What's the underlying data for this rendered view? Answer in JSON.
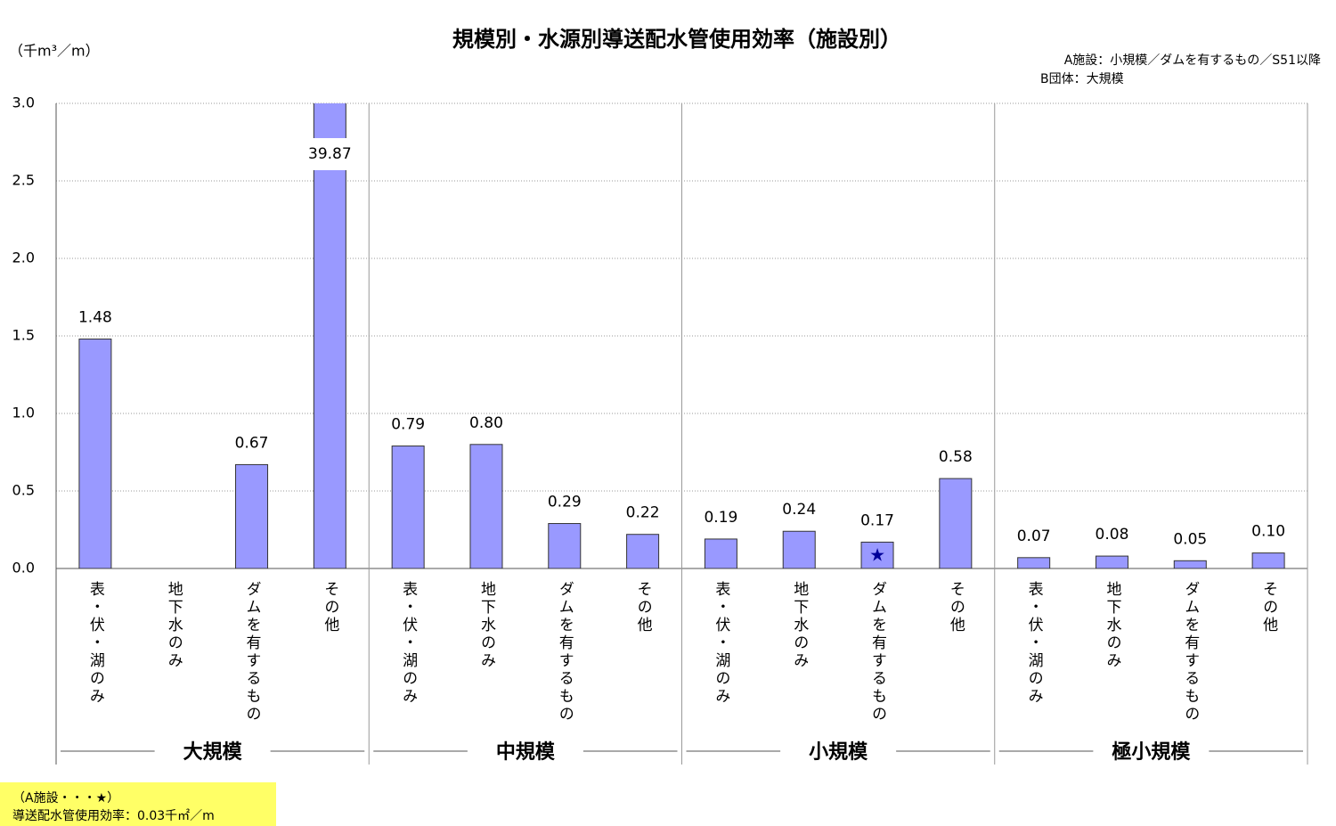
{
  "chart_data": {
    "type": "bar",
    "title": "規模別・水源別導送配水管使用効率（施設別）",
    "y_axis_label": "（千m³／m）",
    "annotations": [
      "A施設：小規模／ダムを有するもの／S51以降",
      "B団体：大規模"
    ],
    "note": [
      "（A施設・・・★）",
      "導送配水管使用効率：0.03千㎡／m"
    ],
    "groups": [
      "大規模",
      "中規模",
      "小規模",
      "極小規模"
    ],
    "categories": [
      "表・伏・湖のみ",
      "地下水のみ",
      "ダムを有するもの",
      "その他",
      "表・伏・湖のみ",
      "地下水のみ",
      "ダムを有するもの",
      "その他",
      "表・伏・湖のみ",
      "地下水のみ",
      "ダムを有するもの",
      "その他",
      "表・伏・湖のみ",
      "地下水のみ",
      "ダムを有するもの",
      "その他"
    ],
    "values": [
      1.48,
      null,
      0.67,
      39.87,
      0.79,
      0.8,
      0.29,
      0.22,
      0.19,
      0.24,
      0.17,
      0.58,
      0.07,
      0.08,
      0.05,
      0.1
    ],
    "value_labels": [
      "1.48",
      null,
      "0.67",
      "39.87",
      "0.79",
      "0.80",
      "0.29",
      "0.22",
      "0.19",
      "0.24",
      "0.17",
      "0.58",
      "0.07",
      "0.08",
      "0.05",
      "0.10"
    ],
    "star_marker": {
      "index": 10,
      "symbol": "★"
    },
    "color": "#9999ff",
    "ylim": [
      0,
      3
    ],
    "yticks": [
      {
        "value": 0,
        "label": "0.0"
      },
      0.5,
      {
        "value": 1,
        "label": "1.0"
      },
      1.5,
      {
        "value": 2,
        "label": "2.0"
      },
      2.5,
      {
        "value": 3,
        "label": "3.0"
      }
    ],
    "grid": true
  }
}
